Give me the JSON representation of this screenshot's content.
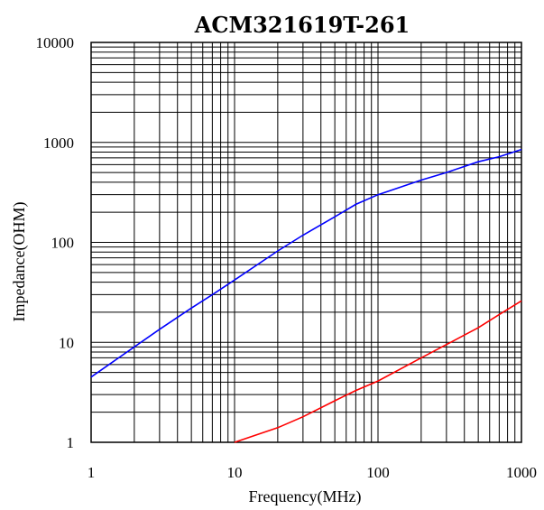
{
  "chart_data": {
    "type": "line",
    "title": "ACM321619T-261",
    "xlabel": "Frequency(MHz)",
    "ylabel": "Impedance(OHM)",
    "x_scale": "log",
    "y_scale": "log",
    "xlim": [
      1,
      1000
    ],
    "ylim": [
      1,
      10000
    ],
    "grid": true,
    "x_ticks": [
      "1",
      "10",
      "100",
      "1000"
    ],
    "y_ticks": [
      "1",
      "10",
      "100",
      "1000",
      "10000"
    ],
    "series": [
      {
        "color": "#0000ff",
        "x": [
          1,
          2,
          3,
          5,
          7,
          10,
          20,
          30,
          50,
          70,
          100,
          200,
          300,
          500,
          700,
          1000
        ],
        "y": [
          4.5,
          9,
          13.5,
          22,
          30,
          42,
          82,
          118,
          180,
          240,
          300,
          420,
          500,
          640,
          720,
          850
        ]
      },
      {
        "color": "#ff0000",
        "x": [
          10,
          20,
          30,
          50,
          70,
          100,
          200,
          300,
          500,
          700,
          1000
        ],
        "y": [
          1,
          1.4,
          1.8,
          2.6,
          3.3,
          4.1,
          7,
          9.5,
          14,
          19,
          26
        ]
      }
    ]
  }
}
